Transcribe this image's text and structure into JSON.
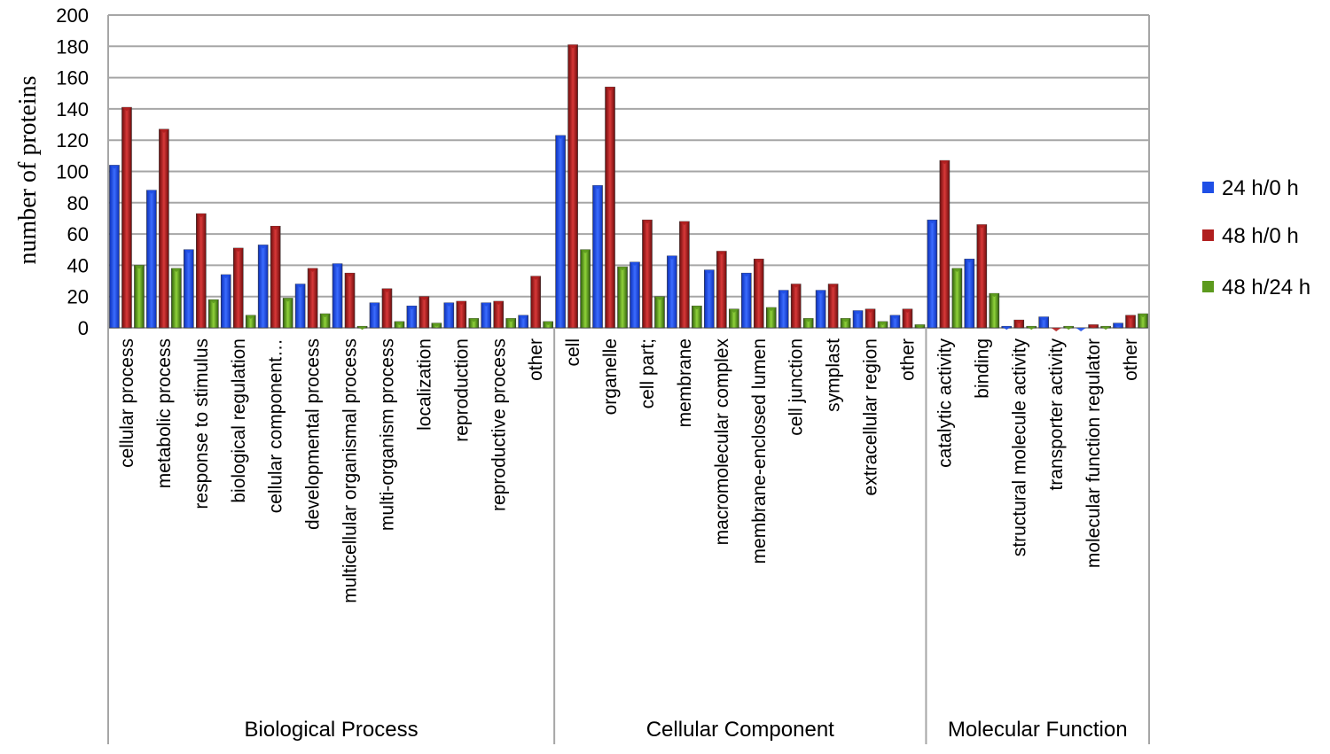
{
  "chart_data": {
    "type": "bar",
    "ylabel": "number of proteins",
    "ylim": [
      0,
      200
    ],
    "yticks": [
      0,
      20,
      40,
      60,
      80,
      100,
      120,
      140,
      160,
      180,
      200
    ],
    "groups": [
      {
        "label": "Biological Process",
        "categories": [
          "cellular process",
          "metabolic process",
          "response to stimulus",
          "biological regulation",
          "cellular component…",
          "developmental process",
          "multicellular organismal process",
          "multi-organism process",
          "localization",
          "reproduction",
          "reproductive process",
          "other"
        ]
      },
      {
        "label": "Cellular Component",
        "categories": [
          "cell",
          "organelle",
          "cell part;",
          "membrane",
          "macromolecular complex",
          "membrane-enclosed lumen",
          "cell junction",
          "symplast",
          "extracellular region",
          "other"
        ]
      },
      {
        "label": "Molecular Function",
        "categories": [
          "catalytic activity",
          "binding",
          "structural molecule activity",
          "transporter activity",
          "molecular function regulator",
          "other"
        ]
      }
    ],
    "series": [
      {
        "name": "24 h/0 h",
        "color": "#1f4fe6",
        "values": [
          104,
          88,
          50,
          34,
          53,
          28,
          41,
          16,
          14,
          16,
          16,
          8,
          123,
          91,
          42,
          46,
          37,
          35,
          24,
          24,
          11,
          8,
          69,
          44,
          1,
          7,
          0,
          3
        ]
      },
      {
        "name": "48 h/0 h",
        "color": "#b01e1e",
        "values": [
          141,
          127,
          73,
          51,
          65,
          38,
          35,
          25,
          20,
          17,
          17,
          33,
          181,
          154,
          69,
          68,
          49,
          44,
          28,
          28,
          12,
          12,
          107,
          66,
          5,
          0,
          2,
          8
        ]
      },
      {
        "name": "48 h/24 h",
        "color": "#5c9a1e",
        "values": [
          40,
          38,
          18,
          8,
          19,
          9,
          1,
          4,
          3,
          6,
          6,
          4,
          50,
          39,
          20,
          14,
          12,
          13,
          6,
          6,
          4,
          2,
          38,
          22,
          1,
          1,
          1,
          9
        ]
      }
    ]
  }
}
